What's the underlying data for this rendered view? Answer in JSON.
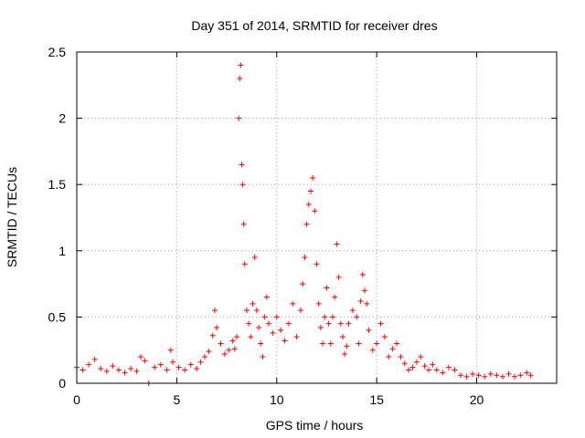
{
  "chart_data": {
    "type": "scatter",
    "title": "Day 351 of 2014, SRMTID for receiver dres",
    "xlabel": "GPS time / hours",
    "ylabel": "SRMTID / TECUs",
    "xlim": [
      0,
      24
    ],
    "ylim": [
      0,
      2.5
    ],
    "x_ticks": [
      0,
      5,
      10,
      15,
      20
    ],
    "x_tick_labels": [
      "0",
      "5",
      "10",
      "15",
      "20"
    ],
    "y_ticks": [
      0,
      0.5,
      1,
      1.5,
      2,
      2.5
    ],
    "y_tick_labels": [
      "0",
      "0.5",
      "1",
      "1.5",
      "2",
      "2.5"
    ],
    "grid": true,
    "marker": "plus",
    "color": "#ff0000",
    "series": [
      {
        "name": "SRMTID",
        "x": [
          0.0,
          0.3,
          0.6,
          0.9,
          1.2,
          1.5,
          1.8,
          2.1,
          2.4,
          2.7,
          3.0,
          3.2,
          3.4,
          3.6,
          3.9,
          4.2,
          4.5,
          4.7,
          4.8,
          5.1,
          5.4,
          5.7,
          6.0,
          6.2,
          6.4,
          6.6,
          6.8,
          6.9,
          7.0,
          7.2,
          7.4,
          7.6,
          7.8,
          7.9,
          8.0,
          8.1,
          8.15,
          8.2,
          8.25,
          8.3,
          8.35,
          8.4,
          8.5,
          8.6,
          8.7,
          8.8,
          8.9,
          9.0,
          9.1,
          9.2,
          9.3,
          9.4,
          9.5,
          9.6,
          9.8,
          10.0,
          10.2,
          10.4,
          10.6,
          10.8,
          11.0,
          11.2,
          11.3,
          11.4,
          11.5,
          11.6,
          11.7,
          11.8,
          11.9,
          12.0,
          12.1,
          12.2,
          12.3,
          12.4,
          12.5,
          12.6,
          12.7,
          12.8,
          12.9,
          13.0,
          13.1,
          13.2,
          13.3,
          13.4,
          13.5,
          13.6,
          13.8,
          14.0,
          14.1,
          14.2,
          14.3,
          14.4,
          14.5,
          14.6,
          14.8,
          15.0,
          15.2,
          15.4,
          15.6,
          15.8,
          16.0,
          16.2,
          16.4,
          16.6,
          16.8,
          17.0,
          17.2,
          17.4,
          17.6,
          17.8,
          18.0,
          18.3,
          18.6,
          18.9,
          19.2,
          19.5,
          19.8,
          20.1,
          20.4,
          20.7,
          21.0,
          21.3,
          21.6,
          21.9,
          22.2,
          22.5,
          22.7
        ],
        "y": [
          0.12,
          0.1,
          0.14,
          0.18,
          0.11,
          0.09,
          0.13,
          0.1,
          0.08,
          0.11,
          0.09,
          0.2,
          0.17,
          0.0,
          0.12,
          0.14,
          0.1,
          0.25,
          0.16,
          0.12,
          0.1,
          0.14,
          0.11,
          0.16,
          0.2,
          0.24,
          0.36,
          0.55,
          0.42,
          0.3,
          0.22,
          0.25,
          0.32,
          0.26,
          0.35,
          2.0,
          2.3,
          2.4,
          1.65,
          1.5,
          1.2,
          0.9,
          0.55,
          0.45,
          0.35,
          0.6,
          0.95,
          0.55,
          0.42,
          0.3,
          0.2,
          0.5,
          0.65,
          0.45,
          0.38,
          0.5,
          0.4,
          0.32,
          0.45,
          0.6,
          0.35,
          0.55,
          0.75,
          0.95,
          1.2,
          1.35,
          1.45,
          1.55,
          1.3,
          0.9,
          0.6,
          0.42,
          0.3,
          0.5,
          0.72,
          0.45,
          0.3,
          0.5,
          0.65,
          1.05,
          0.8,
          0.45,
          0.35,
          0.22,
          0.28,
          0.45,
          0.55,
          0.5,
          0.3,
          0.62,
          0.82,
          0.7,
          0.6,
          0.4,
          0.25,
          0.3,
          0.45,
          0.35,
          0.2,
          0.26,
          0.3,
          0.2,
          0.15,
          0.1,
          0.12,
          0.16,
          0.2,
          0.13,
          0.1,
          0.14,
          0.1,
          0.08,
          0.12,
          0.1,
          0.06,
          0.05,
          0.07,
          0.06,
          0.05,
          0.07,
          0.06,
          0.05,
          0.07,
          0.05,
          0.06,
          0.08,
          0.06
        ]
      }
    ]
  }
}
